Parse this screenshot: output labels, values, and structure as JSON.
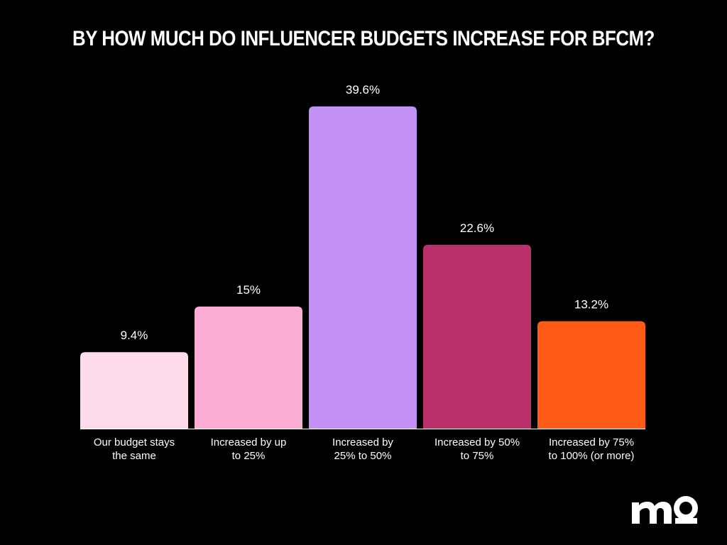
{
  "chart_data": {
    "type": "bar",
    "title": "BY HOW MUCH DO INFLUENCER BUDGETS INCREASE FOR BFCM?",
    "categories": [
      [
        "Our budget stays",
        "the same"
      ],
      [
        "Increased by up",
        "to 25%"
      ],
      [
        "Increased by",
        "25% to 50%"
      ],
      [
        "Increased by 50%",
        "to 75%"
      ],
      [
        "Increased by 75%",
        "to 100% (or more)"
      ]
    ],
    "values": [
      9.4,
      15,
      39.6,
      22.6,
      13.2
    ],
    "value_labels": [
      "9.4%",
      "15%",
      "39.6%",
      "22.6%",
      "13.2%"
    ],
    "colors": [
      "#fddbeb",
      "#fbadd3",
      "#c492f7",
      "#b9306a",
      "#ff5b17"
    ],
    "xlabel": "",
    "ylabel": "",
    "ylim": [
      0,
      39.6
    ],
    "grid": false,
    "legend": "none"
  },
  "brand": {
    "logo_text": "mo"
  }
}
